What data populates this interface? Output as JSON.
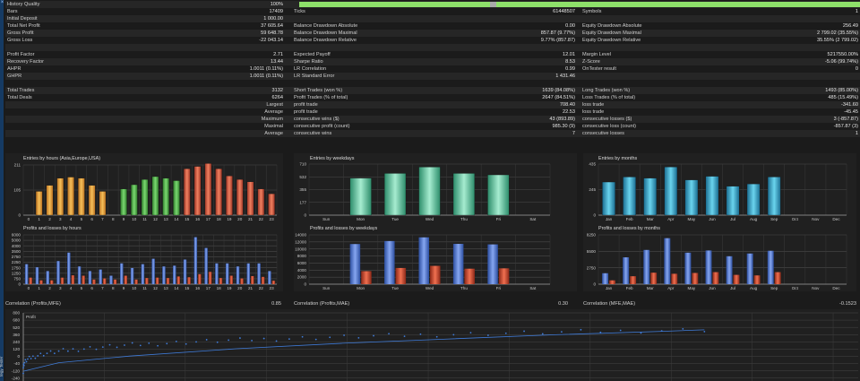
{
  "stats": {
    "history_quality": {
      "label": "History Quality",
      "value": "100%",
      "fill": 1.0
    },
    "rows": [
      {
        "c1": [
          "Bars",
          "17409"
        ],
        "c2": [
          "Ticks",
          "61448507"
        ],
        "c3": [
          "Symbols",
          "1"
        ]
      },
      {
        "c1": [
          "Initial Deposit",
          "1 000.00"
        ],
        "c2": [
          "",
          ""
        ],
        "c3": [
          "",
          ""
        ]
      },
      {
        "c1": [
          "Total Net Profit",
          "37 605.64"
        ],
        "c2": [
          "Balance Drawdown Absolute",
          "0.00"
        ],
        "c3": [
          "Equity Drawdown Absolute",
          "256.49"
        ]
      },
      {
        "c1": [
          "Gross Profit",
          "59 648.78"
        ],
        "c2": [
          "Balance Drawdown Maximal",
          "857.87 (9.77%)"
        ],
        "c3": [
          "Equity Drawdown Maximal",
          "2 799.02 (35.55%)"
        ]
      },
      {
        "c1": [
          "Gross Loss",
          "-22 043.14"
        ],
        "c2": [
          "Balance Drawdown Relative",
          "9.77% (857.87)"
        ],
        "c3": [
          "Equity Drawdown Relative",
          "35.55% (2 799.02)"
        ]
      },
      {
        "c1": [
          "",
          ""
        ],
        "c2": [
          "",
          ""
        ],
        "c3": [
          "",
          ""
        ]
      },
      {
        "c1": [
          "Profit Factor",
          "2.71"
        ],
        "c2": [
          "Expected Payoff",
          "12.01"
        ],
        "c3": [
          "Margin Level",
          "5217550.00%"
        ]
      },
      {
        "c1": [
          "Recovery Factor",
          "13.44"
        ],
        "c2": [
          "Sharpe Ratio",
          "8.53"
        ],
        "c3": [
          "Z-Score",
          "-5.06 (99.74%)"
        ]
      },
      {
        "c1": [
          "AHPR",
          "1.0011 (0.11%)"
        ],
        "c2": [
          "LR Correlation",
          "0.99"
        ],
        "c3": [
          "OnTester result",
          "0"
        ]
      },
      {
        "c1": [
          "GHPR",
          "1.0011 (0.11%)"
        ],
        "c2": [
          "LR Standard Error",
          "1 431.46"
        ],
        "c3": [
          "",
          ""
        ]
      },
      {
        "c1": [
          "",
          ""
        ],
        "c2": [
          "",
          ""
        ],
        "c3": [
          "",
          ""
        ]
      },
      {
        "c1": [
          "Total Trades",
          "3132"
        ],
        "c2": [
          "Short Trades (won %)",
          "1639 (84.08%)"
        ],
        "c3": [
          "Long Trades (won %)",
          "1493 (85.00%)"
        ]
      },
      {
        "c1": [
          "Total Deals",
          "6264"
        ],
        "c2": [
          "Profit Trades (% of total)",
          "2647 (84.51%)"
        ],
        "c3": [
          "Loss Trades (% of total)",
          "485 (15.49%)"
        ]
      },
      {
        "c1": [
          "Largest",
          ""
        ],
        "c2": [
          "profit trade",
          "708.40"
        ],
        "c3": [
          "loss trade",
          "-341.60"
        ]
      },
      {
        "c1": [
          "Average",
          ""
        ],
        "c2": [
          "profit trade",
          "22.53"
        ],
        "c3": [
          "loss trade",
          "-45.45"
        ]
      },
      {
        "c1": [
          "Maximum",
          ""
        ],
        "c2": [
          "consecutive wins ($)",
          "43 (893.89)"
        ],
        "c3": [
          "consecutive losses ($)",
          "3 (-857.87)"
        ]
      },
      {
        "c1": [
          "Maximal",
          ""
        ],
        "c2": [
          "consecutive profit (count)",
          "985.30 (9)"
        ],
        "c3": [
          "consecutive loss (count)",
          "-857.87 (3)"
        ]
      },
      {
        "c1": [
          "Average",
          ""
        ],
        "c2": [
          "consecutive wins",
          "7"
        ],
        "c3": [
          "consecutive losses",
          "1"
        ]
      }
    ]
  },
  "colors": {
    "orange": "#e8a040",
    "green": "#52b84e",
    "red": "#d65a42",
    "teal_bar": "#5cc4a2",
    "blue_bar": "#30a0c8",
    "profit": "#4c7ad6",
    "loss": "#d04a32",
    "line": "#3f7bd8"
  },
  "chart_data": [
    {
      "type": "bar",
      "title": "Entries by hours (Asia,Europe,USA)",
      "categories": [
        "0",
        "1",
        "2",
        "3",
        "4",
        "5",
        "6",
        "7",
        "8",
        "9",
        "10",
        "11",
        "12",
        "13",
        "14",
        "15",
        "16",
        "17",
        "18",
        "19",
        "20",
        "21",
        "22",
        "23"
      ],
      "values": [
        0,
        100,
        125,
        155,
        160,
        155,
        125,
        100,
        0,
        110,
        128,
        150,
        162,
        155,
        145,
        195,
        205,
        217,
        195,
        165,
        150,
        140,
        110,
        90
      ],
      "yticks": [
        "0",
        "105",
        "211"
      ],
      "ylim": [
        0,
        211
      ],
      "group_colors": [
        "orange",
        "orange",
        "orange",
        "orange",
        "orange",
        "orange",
        "orange",
        "orange",
        "orange",
        "green",
        "green",
        "green",
        "green",
        "green",
        "green",
        "red",
        "red",
        "red",
        "red",
        "red",
        "red",
        "red",
        "red",
        "red"
      ]
    },
    {
      "type": "bar",
      "title": "Entries by weekdays",
      "categories": [
        "Sun",
        "Mon",
        "Tue",
        "Wed",
        "Thu",
        "Fri",
        "Sat"
      ],
      "values": [
        0,
        515,
        580,
        668,
        580,
        560,
        0
      ],
      "yticks": [
        "0",
        "177",
        "355",
        "532",
        "710"
      ],
      "ylim": [
        0,
        710
      ]
    },
    {
      "type": "bar",
      "title": "Entries by months",
      "categories": [
        "Jan",
        "Feb",
        "Mar",
        "Apr",
        "May",
        "Jun",
        "Jul",
        "Aug",
        "Sep",
        "Oct",
        "Nov",
        "Dec"
      ],
      "values": [
        282,
        325,
        315,
        410,
        300,
        331,
        246,
        266,
        325,
        0,
        0,
        0
      ],
      "yticks": [
        "0",
        "245",
        "435"
      ],
      "ylim": [
        0,
        435
      ]
    },
    {
      "type": "bar",
      "title": "Profits and losses by hours",
      "categories": [
        "0",
        "1",
        "2",
        "3",
        "4",
        "5",
        "6",
        "7",
        "8",
        "9",
        "10",
        "11",
        "12",
        "13",
        "14",
        "15",
        "16",
        "17",
        "18",
        "19",
        "20",
        "21",
        "22",
        "23"
      ],
      "series": [
        {
          "name": "Profit",
          "values": [
            2600,
            2200,
            1700,
            3000,
            4100,
            2300,
            1700,
            1900,
            1100,
            2700,
            2100,
            2600,
            3300,
            2300,
            2400,
            3200,
            6100,
            4700,
            2700,
            2700,
            2300,
            2700,
            2700,
            1700
          ]
        },
        {
          "name": "Loss",
          "values": [
            850,
            500,
            500,
            850,
            1150,
            1100,
            600,
            750,
            600,
            1100,
            600,
            800,
            850,
            800,
            1000,
            900,
            1300,
            1600,
            800,
            1100,
            750,
            1050,
            950,
            450
          ]
        }
      ],
      "yticks": [
        "0",
        "750",
        "1250",
        "1750",
        "2250",
        "2750",
        "3500",
        "4000",
        "5000",
        "6000"
      ],
      "ylim": [
        0,
        6400
      ]
    },
    {
      "type": "bar",
      "title": "Profits and losses by weekdays",
      "categories": [
        "Sun",
        "Mon",
        "Tue",
        "Wed",
        "Thu",
        "Fri",
        "Sat"
      ],
      "series": [
        {
          "name": "Profit",
          "values": [
            0,
            11400,
            12250,
            13300,
            11450,
            11300,
            0
          ]
        },
        {
          "name": "Loss",
          "values": [
            0,
            3700,
            4600,
            5200,
            4400,
            4500,
            0
          ]
        }
      ],
      "yticks": [
        "0",
        "2000",
        "4000",
        "6000",
        "8000",
        "10000",
        "12000",
        "14000"
      ],
      "ylim": [
        0,
        14000
      ]
    },
    {
      "type": "bar",
      "title": "Profits and losses by months",
      "categories": [
        "Jan",
        "Feb",
        "Mar",
        "Apr",
        "May",
        "Jun",
        "Jul",
        "Aug",
        "Sep",
        "Oct",
        "Nov",
        "Dec"
      ],
      "series": [
        {
          "name": "Profit",
          "values": [
            2000,
            4900,
            6250,
            8400,
            5750,
            6150,
            5100,
            5600,
            6100,
            0,
            0,
            0
          ]
        },
        {
          "name": "Loss",
          "values": [
            700,
            1450,
            2100,
            1900,
            2050,
            2200,
            1700,
            1600,
            2200,
            0,
            0,
            0
          ]
        }
      ],
      "yticks": [
        "0",
        "2750",
        "5500",
        "8250"
      ],
      "ylim": [
        0,
        9000
      ]
    },
    {
      "type": "scatter",
      "series": [
        {
          "name": "Profit"
        }
      ],
      "yticks": [
        "800",
        "680",
        "520",
        "360",
        "240",
        "120",
        "0",
        "-40",
        "-120",
        "-240"
      ],
      "ylim": [
        -260,
        800
      ],
      "xlim": [
        0,
        100
      ],
      "trend": [
        [
          0,
          -100
        ],
        [
          5,
          40
        ],
        [
          15,
          150
        ],
        [
          30,
          270
        ],
        [
          45,
          360
        ],
        [
          60,
          430
        ],
        [
          75,
          500
        ],
        [
          90,
          555
        ],
        [
          96,
          580
        ]
      ]
    }
  ],
  "correlations": [
    {
      "label": "Correlation (Profits,MFE)",
      "value": "0.85"
    },
    {
      "label": "Correlation (Profits,MAE)",
      "value": "0.30"
    },
    {
      "label": "Correlation (MFE,MAE)",
      "value": "-0.1523"
    }
  ],
  "ylabel_fragment": "tegy Tester"
}
